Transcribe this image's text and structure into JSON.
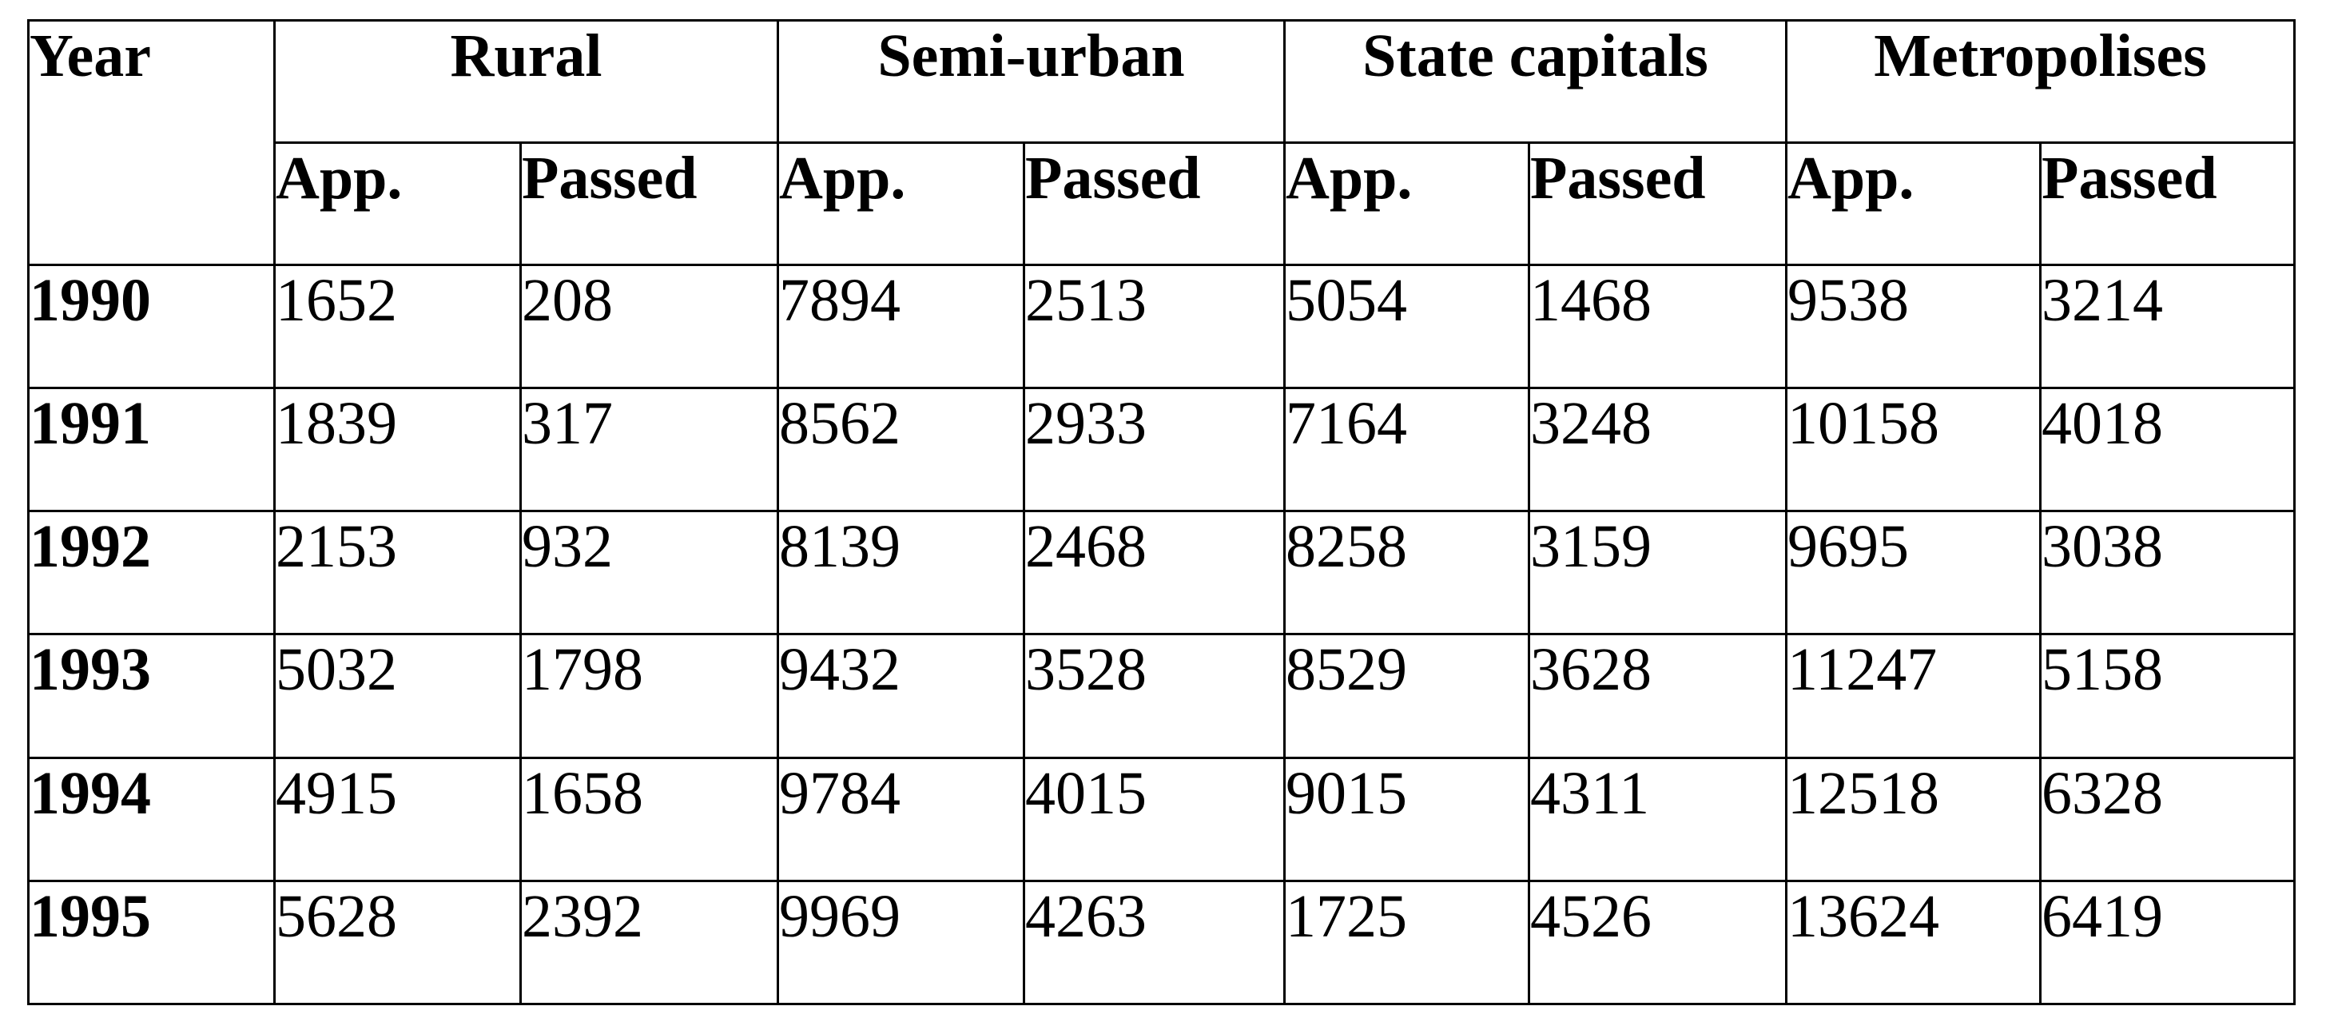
{
  "table": {
    "year_header": "Year",
    "groups": [
      "Rural",
      "Semi-urban",
      "State capitals",
      "Metropolises"
    ],
    "sub_headers": [
      "App.",
      "Passed"
    ],
    "rows": [
      {
        "year": "1990",
        "values": [
          "1652",
          "208",
          "7894",
          "2513",
          "5054",
          "1468",
          "9538",
          "3214"
        ]
      },
      {
        "year": "1991",
        "values": [
          "1839",
          "317",
          "8562",
          "2933",
          "7164",
          "3248",
          "10158",
          "4018"
        ]
      },
      {
        "year": "1992",
        "values": [
          "2153",
          "932",
          "8139",
          "2468",
          "8258",
          "3159",
          "9695",
          "3038"
        ]
      },
      {
        "year": "1993",
        "values": [
          "5032",
          "1798",
          "9432",
          "3528",
          "8529",
          "3628",
          "11247",
          "5158"
        ]
      },
      {
        "year": "1994",
        "values": [
          "4915",
          "1658",
          "9784",
          "4015",
          "9015",
          "4311",
          "12518",
          "6328"
        ]
      },
      {
        "year": "1995",
        "values": [
          "5628",
          "2392",
          "9969",
          "4263",
          "1725",
          "4526",
          "13624",
          "6419"
        ]
      }
    ]
  }
}
